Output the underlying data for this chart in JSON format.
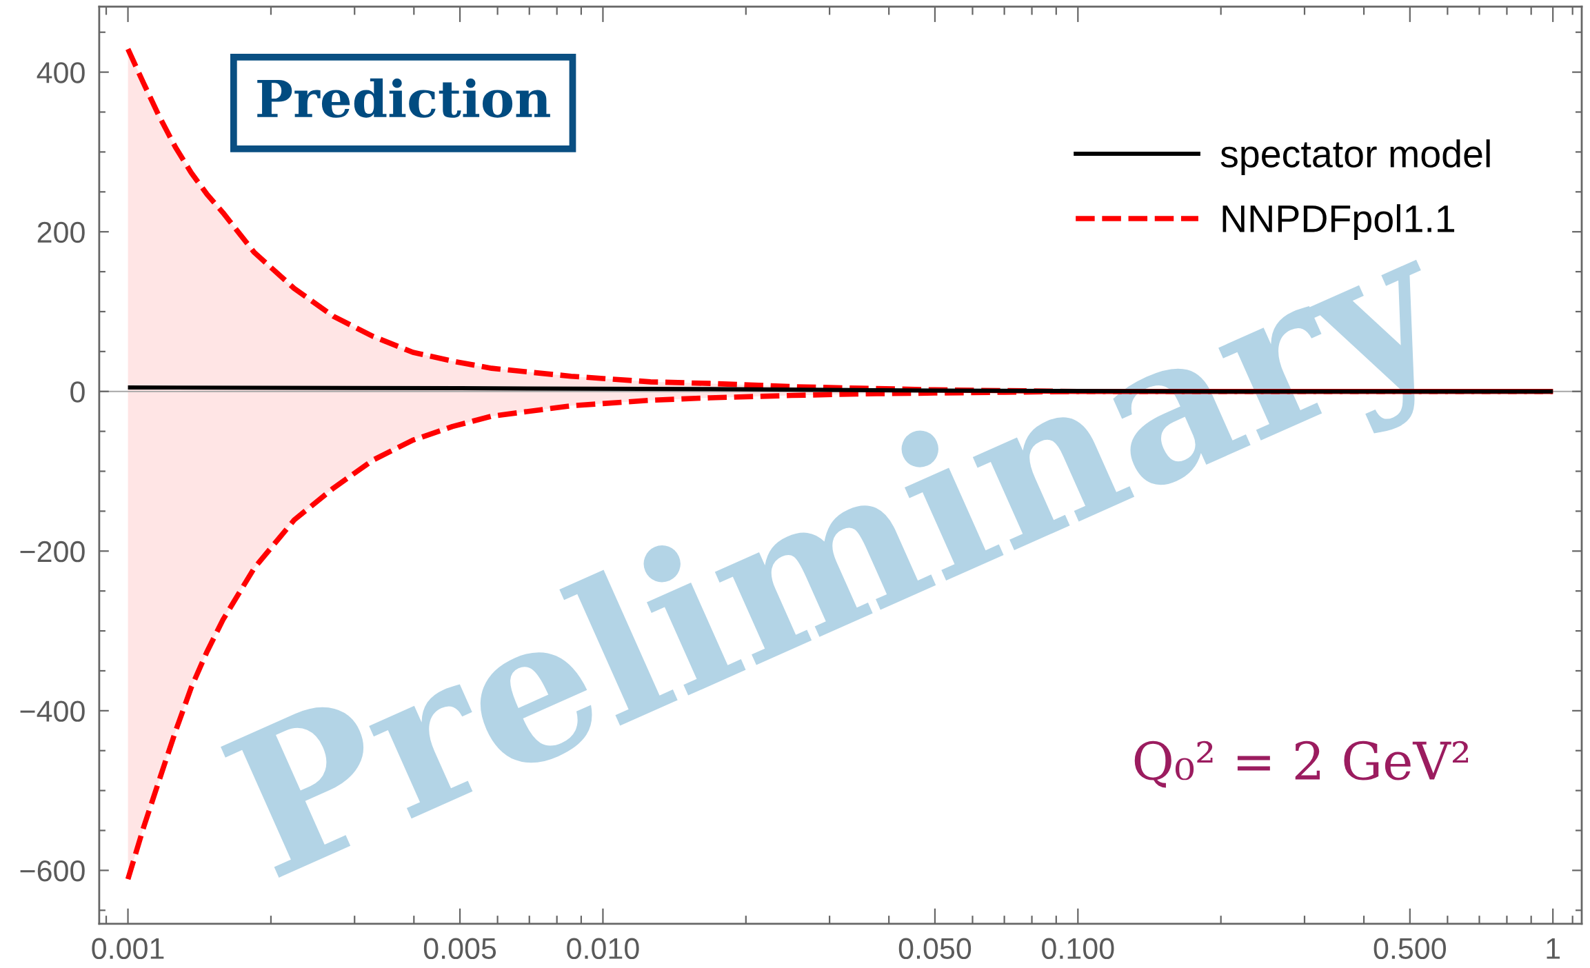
{
  "chart_data": {
    "type": "line",
    "log": "x",
    "xlim": [
      0.00087,
      1.15
    ],
    "ylim": [
      -667,
      482
    ],
    "xticks": [
      {
        "value": 0.001,
        "label": "0.001"
      },
      {
        "value": 0.005,
        "label": "0.005"
      },
      {
        "value": 0.01,
        "label": "0.010"
      },
      {
        "value": 0.05,
        "label": "0.050"
      },
      {
        "value": 0.1,
        "label": "0.100"
      },
      {
        "value": 0.5,
        "label": "0.500"
      },
      1,
      {
        "value": 0.0009,
        "label": null
      },
      {
        "value": 0.002,
        "label": null
      },
      {
        "value": 0.003,
        "label": null
      },
      {
        "value": 0.004,
        "label": null
      },
      {
        "value": 0.006,
        "label": null
      },
      {
        "value": 0.007,
        "label": null
      },
      {
        "value": 0.008,
        "label": null
      },
      {
        "value": 0.009,
        "label": null
      },
      {
        "value": 0.02,
        "label": null
      },
      {
        "value": 0.03,
        "label": null
      },
      {
        "value": 0.04,
        "label": null
      },
      {
        "value": 0.06,
        "label": null
      },
      {
        "value": 0.07,
        "label": null
      },
      {
        "value": 0.08,
        "label": null
      },
      {
        "value": 0.09,
        "label": null
      },
      {
        "value": 0.2,
        "label": null
      },
      {
        "value": 0.3,
        "label": null
      },
      {
        "value": 0.4,
        "label": null
      },
      {
        "value": 0.6,
        "label": null
      },
      {
        "value": 0.7,
        "label": null
      },
      {
        "value": 0.8,
        "label": null
      },
      {
        "value": 0.9,
        "label": null
      },
      {
        "value": 1.1,
        "label": null
      }
    ],
    "yticks": [
      {
        "value": -600,
        "label": "−600"
      },
      {
        "value": -400,
        "label": "−400"
      },
      {
        "value": -200,
        "label": "−200"
      },
      0,
      200,
      400,
      {
        "value": -650,
        "label": null
      },
      {
        "value": -550,
        "label": null
      },
      {
        "value": -500,
        "label": null
      },
      {
        "value": -450,
        "label": null
      },
      {
        "value": -350,
        "label": null
      },
      {
        "value": -300,
        "label": null
      },
      {
        "value": -250,
        "label": null
      },
      {
        "value": -150,
        "label": null
      },
      {
        "value": -100,
        "label": null
      },
      {
        "value": -50,
        "label": null
      },
      {
        "value": 50,
        "label": null
      },
      {
        "value": 100,
        "label": null
      },
      {
        "value": 150,
        "label": null
      },
      {
        "value": 250,
        "label": null
      },
      {
        "value": 300,
        "label": null
      },
      {
        "value": 350,
        "label": null
      },
      {
        "value": 450,
        "label": null
      }
    ],
    "x": [
      0.001,
      0.001079,
      0.001165,
      0.001259,
      0.001359,
      0.001467,
      0.001585,
      0.001846,
      0.002239,
      0.00271,
      0.00328,
      0.00398,
      0.00482,
      0.00583,
      0.00857,
      0.0126,
      0.0168,
      0.025,
      0.035,
      0.05,
      0.07,
      0.1,
      1
    ],
    "series": [
      {
        "name": "spectator model",
        "color": "#000000",
        "line_style": "solid",
        "x": [
          0.001,
          0.005,
          0.0168,
          0.05,
          0.2,
          1
        ],
        "values": [
          5,
          4,
          3,
          1,
          0,
          0
        ]
      },
      {
        "name": "NNPDFpol1.1",
        "color": "#ff0000",
        "line_style": "dashed",
        "values": [
          429,
          386,
          344,
          306,
          274,
          247,
          224,
          174,
          129,
          94,
          69,
          49,
          38,
          29,
          19,
          12,
          10,
          6,
          4,
          2,
          1,
          0,
          0
        ],
        "lower": [
          -611,
          -546,
          -486,
          -426,
          -371,
          -326,
          -286,
          -221,
          -161,
          -121,
          -86,
          -61,
          -44,
          -31,
          -18,
          -11,
          -8,
          -5,
          -3,
          -2,
          -1,
          0,
          0
        ],
        "upper": [
          429,
          386,
          344,
          306,
          274,
          247,
          224,
          174,
          129,
          94,
          69,
          49,
          38,
          29,
          19,
          12,
          10,
          6,
          4,
          2,
          1,
          0,
          0
        ]
      },
      {
        "color": "#ff0000",
        "line_style": "dashed",
        "values": [
          -611,
          -546,
          -486,
          -426,
          -371,
          -326,
          -286,
          -221,
          -161,
          -121,
          -86,
          -61,
          -44,
          -31,
          -18,
          -11,
          -8,
          -5,
          -3,
          -2,
          -1,
          0,
          0
        ]
      }
    ],
    "ref_lines": [
      {
        "axis": "y",
        "value": 0,
        "color": "#a6a6a6"
      }
    ],
    "legend": "top right",
    "grid": false,
    "annotations": [
      "Prediction",
      "Preliminary",
      "Q₀² = 2 GeV²"
    ]
  }
}
